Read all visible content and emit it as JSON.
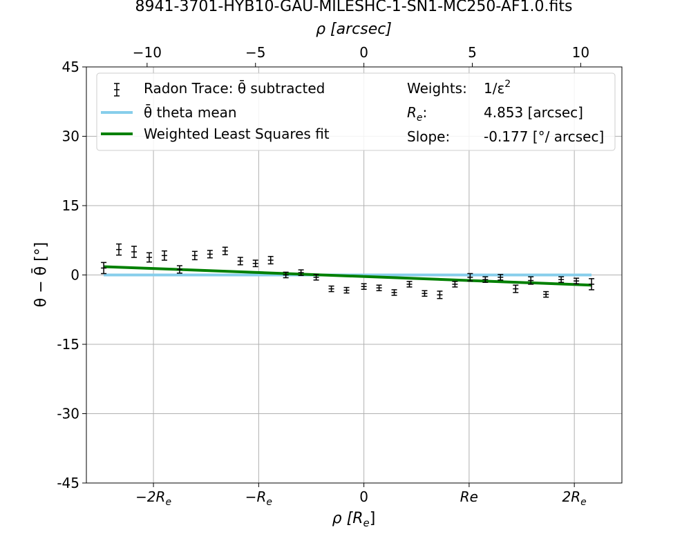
{
  "chart_data": {
    "type": "scatter",
    "title": "8941-3701-HYB10-GAU-MILESHC-1-SN1-MC250-AF1.0.fits",
    "xlabel_top": "ρ [arcsec]",
    "xlabel_bottom": "ρ [R",
    "xlabel_bottom_sub": "e",
    "xlabel_bottom_end": "]",
    "ylabel": "θ − θ̄ [°]",
    "xlim_arcsec": [
      -12.8,
      11.9
    ],
    "ylim": [
      -45,
      45
    ],
    "grid": true,
    "legend_position": "top",
    "y_ticks": [
      {
        "value": 45,
        "label": "45"
      },
      {
        "value": 30,
        "label": "30"
      },
      {
        "value": 15,
        "label": "15"
      },
      {
        "value": 0,
        "label": "0"
      },
      {
        "value": -15,
        "label": "-15"
      },
      {
        "value": -30,
        "label": "-30"
      },
      {
        "value": -45,
        "label": "-45"
      }
    ],
    "x_top_ticks": [
      {
        "value": -10,
        "label": "−10"
      },
      {
        "value": -5,
        "label": "−5"
      },
      {
        "value": 0,
        "label": "0"
      },
      {
        "value": 5,
        "label": "5"
      },
      {
        "value": 10,
        "label": "10"
      }
    ],
    "x_bottom_ticks": [
      {
        "value": -9.706,
        "label": "−2R",
        "sub": "e"
      },
      {
        "value": -4.853,
        "label": "−R",
        "sub": "e"
      },
      {
        "value": 0,
        "label": "0",
        "sub": ""
      },
      {
        "value": 4.853,
        "label": "Re",
        "sub": ""
      },
      {
        "value": 9.706,
        "label": "2R",
        "sub": "e"
      }
    ],
    "series": [
      {
        "name": "Radon Trace: θ̄ subtracted",
        "color": "#000000",
        "x": [
          -12.0,
          -11.3,
          -10.6,
          -9.9,
          -9.2,
          -8.5,
          -7.8,
          -7.1,
          -6.4,
          -5.7,
          -5.0,
          -4.3,
          -3.6,
          -2.9,
          -2.2,
          -1.5,
          -0.8,
          0.0,
          0.7,
          1.4,
          2.1,
          2.8,
          3.5,
          4.2,
          4.9,
          5.6,
          6.3,
          7.0,
          7.7,
          8.4,
          9.1,
          9.8,
          10.5
        ],
        "y": [
          1.5,
          5.5,
          5.0,
          3.8,
          4.2,
          1.2,
          4.2,
          4.5,
          5.2,
          3.0,
          2.5,
          3.2,
          0.0,
          0.5,
          -0.5,
          -3.0,
          -3.3,
          -2.5,
          -2.8,
          -3.8,
          -2.0,
          -4.0,
          -4.3,
          -2.0,
          -0.5,
          -1.0,
          -0.5,
          -3.0,
          -1.2,
          -4.2,
          -1.0,
          -1.3,
          -2.0
        ],
        "yerr": [
          1.2,
          1.2,
          1.2,
          1.0,
          1.0,
          0.8,
          0.9,
          0.8,
          0.8,
          0.8,
          0.7,
          0.8,
          0.6,
          0.6,
          0.6,
          0.6,
          0.6,
          0.6,
          0.6,
          0.6,
          0.6,
          0.6,
          0.8,
          0.6,
          0.8,
          0.6,
          0.6,
          0.8,
          0.8,
          0.6,
          0.6,
          0.6,
          1.2
        ]
      },
      {
        "name": "θ̄ theta mean",
        "color": "#87CEEB",
        "x": [
          -12.0,
          10.5
        ],
        "y": [
          0,
          0
        ]
      },
      {
        "name": "Weighted Least Squares fit",
        "color": "#008000",
        "x": [
          -12.0,
          10.5
        ],
        "y": [
          1.8,
          -2.2
        ]
      }
    ],
    "legend_info": {
      "weights_label": "Weights:",
      "weights_value": "1/ε",
      "weights_exp": "2",
      "re_label": "R",
      "re_sub": "e",
      "re_colon": ":",
      "re_value": "4.853 [arcsec]",
      "slope_label": "Slope:",
      "slope_value": "-0.177 [°/ arcsec]"
    }
  }
}
